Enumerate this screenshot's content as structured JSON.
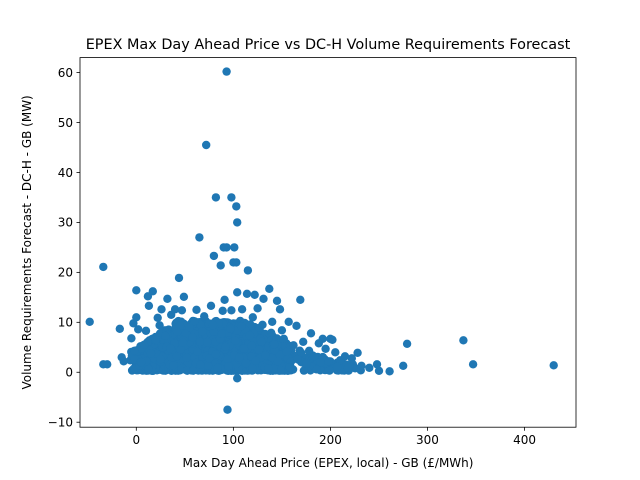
{
  "chart_data": {
    "type": "scatter",
    "title": "EPEX Max Day Ahead Price vs DC-H Volume Requirements Forecast",
    "xlabel": "Max Day Ahead Price (EPEX, local) - GB (£/MWh)",
    "ylabel": "Volume Requirements Forecast - DC-H - GB (MW)",
    "xlim": [
      -58,
      453
    ],
    "ylim": [
      -11,
      63
    ],
    "x_ticks": [
      0,
      100,
      200,
      300,
      400
    ],
    "y_ticks": [
      -10,
      0,
      10,
      20,
      30,
      40,
      50,
      60
    ],
    "grid": false,
    "marker_color": "#1f77b4",
    "series": [
      {
        "points": [
          [
            93,
            60.2
          ],
          [
            72,
            45.5
          ],
          [
            82,
            35.0
          ],
          [
            98,
            35.0
          ],
          [
            103,
            33.2
          ],
          [
            104,
            30.0
          ],
          [
            65,
            27.0
          ],
          [
            93,
            25.0
          ],
          [
            90,
            25.0
          ],
          [
            101,
            25.0
          ],
          [
            80,
            23.3
          ],
          [
            100,
            22.0
          ],
          [
            103,
            22.0
          ],
          [
            87,
            21.4
          ],
          [
            -34,
            21.1
          ],
          [
            115,
            20.4
          ],
          [
            44,
            18.9
          ],
          [
            137,
            16.7
          ],
          [
            0,
            16.4
          ],
          [
            17,
            16.2
          ],
          [
            104,
            16.0
          ],
          [
            114,
            15.7
          ],
          [
            12,
            15.2
          ],
          [
            49,
            15.1
          ],
          [
            122,
            15.5
          ],
          [
            131,
            14.7
          ],
          [
            145,
            14.3
          ],
          [
            169,
            14.5
          ],
          [
            32,
            14.7
          ],
          [
            91,
            14.5
          ],
          [
            13,
            13.3
          ],
          [
            26,
            12.6
          ],
          [
            40,
            12.6
          ],
          [
            47,
            12.4
          ],
          [
            62,
            12.5
          ],
          [
            77,
            13.3
          ],
          [
            89,
            12.3
          ],
          [
            98,
            12.4
          ],
          [
            109,
            12.6
          ],
          [
            125,
            12.8
          ],
          [
            148,
            12.6
          ],
          [
            36,
            11.5
          ],
          [
            0,
            11.0
          ],
          [
            70,
            11.2
          ],
          [
            120,
            11.0
          ],
          [
            22,
            10.9
          ],
          [
            -48,
            10.1
          ],
          [
            24,
            9.4
          ],
          [
            140,
            10.1
          ],
          [
            157,
            10.1
          ],
          [
            165,
            9.3
          ],
          [
            -3,
            9.8
          ],
          [
            -17,
            8.7
          ],
          [
            2,
            8.6
          ],
          [
            45,
            9.3
          ],
          [
            60,
            10.2
          ],
          [
            85,
            9.8
          ],
          [
            130,
            9.5
          ],
          [
            150,
            8.4
          ],
          [
            10,
            8.3
          ],
          [
            180,
            7.8
          ],
          [
            192,
            6.7
          ],
          [
            200,
            6.7
          ],
          [
            202,
            6.5
          ],
          [
            188,
            5.8
          ],
          [
            195,
            4.7
          ],
          [
            178,
            4.3
          ],
          [
            205,
            4.0
          ],
          [
            170,
            3.9
          ],
          [
            215,
            3.2
          ],
          [
            228,
            3.9
          ],
          [
            222,
            2.8
          ],
          [
            210,
            2.4
          ],
          [
            190,
            2.0
          ],
          [
            232,
            1.3
          ],
          [
            240,
            0.9
          ],
          [
            248,
            1.6
          ],
          [
            250,
            0.3
          ],
          [
            261,
            0.2
          ],
          [
            275,
            1.3
          ],
          [
            279,
            5.7
          ],
          [
            337,
            6.4
          ],
          [
            347,
            1.6
          ],
          [
            430,
            1.4
          ],
          [
            -34,
            1.6
          ],
          [
            -15,
            3.0
          ],
          [
            -13,
            2.2
          ],
          [
            -5,
            6.8
          ],
          [
            -2,
            4.3
          ],
          [
            5,
            2.0
          ],
          [
            8,
            5.5
          ],
          [
            15,
            3.8
          ],
          [
            20,
            6.6
          ],
          [
            25,
            2.6
          ],
          [
            30,
            7.3
          ],
          [
            35,
            4.8
          ],
          [
            38,
            1.4
          ],
          [
            42,
            8.1
          ],
          [
            48,
            5.9
          ],
          [
            52,
            2.9
          ],
          [
            55,
            9.0
          ],
          [
            58,
            7.0
          ],
          [
            63,
            4.1
          ],
          [
            66,
            1.5
          ],
          [
            68,
            8.2
          ],
          [
            73,
            6.0
          ],
          [
            75,
            2.8
          ],
          [
            79,
            9.4
          ],
          [
            82,
            3.6
          ],
          [
            84,
            0.9
          ],
          [
            88,
            7.7
          ],
          [
            92,
            5.1
          ],
          [
            95,
            1.2
          ],
          [
            97,
            8.7
          ],
          [
            102,
            6.3
          ],
          [
            104,
            -1.2
          ],
          [
            106,
            3.0
          ],
          [
            108,
            9.2
          ],
          [
            111,
            4.7
          ],
          [
            113,
            1.8
          ],
          [
            117,
            7.4
          ],
          [
            119,
            5.3
          ],
          [
            123,
            2.3
          ],
          [
            127,
            8.9
          ],
          [
            129,
            6.1
          ],
          [
            133,
            3.4
          ],
          [
            136,
            0.8
          ],
          [
            139,
            7.9
          ],
          [
            142,
            5.6
          ],
          [
            146,
            2.2
          ],
          [
            152,
            6.7
          ],
          [
            155,
            4.1
          ],
          [
            158,
            1.0
          ],
          [
            162,
            5.4
          ],
          [
            166,
            2.6
          ],
          [
            172,
            6.1
          ],
          [
            175,
            1.7
          ],
          [
            183,
            3.2
          ],
          [
            186,
            0.6
          ],
          [
            198,
            2.2
          ],
          [
            207,
            1.1
          ],
          [
            218,
            0.9
          ],
          [
            94,
            -7.5
          ],
          [
            -30,
            1.6
          ]
        ]
      }
    ]
  }
}
